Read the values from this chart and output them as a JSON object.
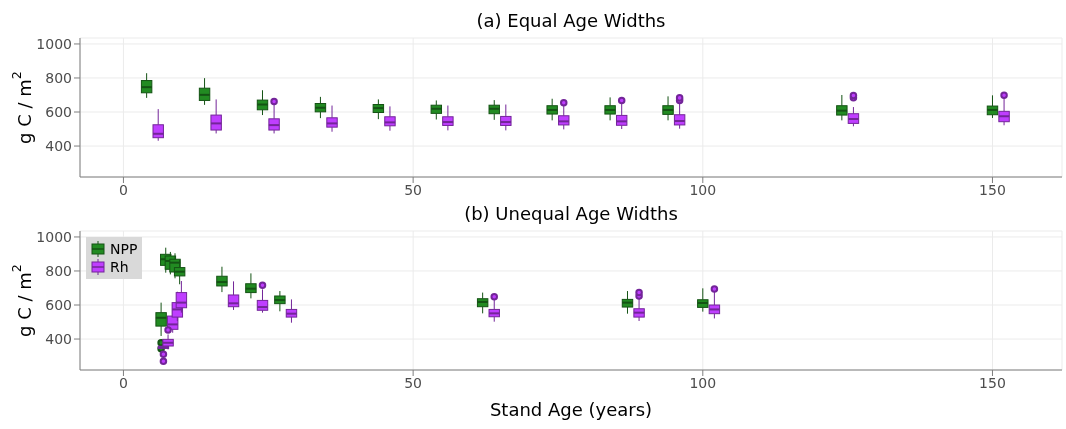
{
  "chart_data": [
    {
      "type": "box",
      "title": "(a) Equal Age Widths",
      "ylabel": "g C / m$^{2}$",
      "xlim": [
        -7.5,
        162
      ],
      "xticks": [
        0,
        50,
        100,
        150
      ],
      "ylim": [
        218,
        1035
      ],
      "yticks": [
        400,
        600,
        800,
        1000
      ],
      "grid": true,
      "series": [
        {
          "color": "#228b22",
          "x": [
            4,
            14,
            24,
            34,
            44,
            54,
            64,
            74,
            84,
            94,
            124,
            150
          ],
          "boxes": [
            {
              "low": 683,
              "q1": 713,
              "median": 746,
              "q3": 785,
              "high": 828
            },
            {
              "low": 642,
              "q1": 668,
              "median": 701,
              "q3": 740,
              "high": 799
            },
            {
              "low": 582,
              "q1": 613,
              "median": 644,
              "q3": 670,
              "high": 728
            },
            {
              "low": 564,
              "q1": 601,
              "median": 625,
              "q3": 650,
              "high": 689
            },
            {
              "low": 558,
              "q1": 597,
              "median": 623,
              "q3": 644,
              "high": 674
            },
            {
              "low": 556,
              "q1": 592,
              "median": 619,
              "q3": 640,
              "high": 668
            },
            {
              "low": 554,
              "q1": 590,
              "median": 619,
              "q3": 640,
              "high": 670
            },
            {
              "low": 551,
              "q1": 588,
              "median": 612,
              "q3": 637,
              "high": 678
            },
            {
              "low": 551,
              "q1": 588,
              "median": 612,
              "q3": 637,
              "high": 686
            },
            {
              "low": 551,
              "q1": 586,
              "median": 612,
              "q3": 637,
              "high": 692
            },
            {
              "low": 551,
              "q1": 582,
              "median": 608,
              "q3": 637,
              "high": 700
            },
            {
              "low": 565,
              "q1": 584,
              "median": 612,
              "q3": 635,
              "high": 698
            }
          ]
        },
        {
          "color": "#bf3eff",
          "x": [
            6,
            16,
            26,
            36,
            46,
            56,
            66,
            76,
            86,
            96,
            126,
            152
          ],
          "boxes": [
            {
              "low": 431,
              "q1": 449,
              "median": 472,
              "q3": 525,
              "high": 617
            },
            {
              "low": 474,
              "q1": 494,
              "median": 533,
              "q3": 582,
              "high": 674
            },
            {
              "low": 474,
              "q1": 494,
              "median": 523,
              "q3": 560,
              "high": 644,
              "outliers": [
                662
              ]
            },
            {
              "low": 484,
              "q1": 511,
              "median": 533,
              "q3": 566,
              "high": 638
            },
            {
              "low": 490,
              "q1": 519,
              "median": 539,
              "q3": 572,
              "high": 633
            },
            {
              "low": 492,
              "q1": 521,
              "median": 541,
              "q3": 572,
              "high": 638
            },
            {
              "low": 492,
              "q1": 521,
              "median": 541,
              "q3": 574,
              "high": 644
            },
            {
              "low": 498,
              "q1": 524,
              "median": 545,
              "q3": 578,
              "high": 639,
              "outliers": [
                655
              ]
            },
            {
              "low": 500,
              "q1": 522,
              "median": 545,
              "q3": 580,
              "high": 653,
              "outliers": [
                667
              ]
            },
            {
              "low": 502,
              "q1": 524,
              "median": 547,
              "q3": 584,
              "high": 653,
              "outliers": [
                668,
                683
              ]
            },
            {
              "low": 516,
              "q1": 533,
              "median": 559,
              "q3": 590,
              "high": 629,
              "outliers": [
                684,
                697
              ]
            },
            {
              "low": 522,
              "q1": 543,
              "median": 575,
              "q3": 604,
              "high": 684,
              "outliers": [
                698
              ]
            }
          ]
        }
      ]
    },
    {
      "type": "box",
      "title": "(b) Unequal Age Widths",
      "xlabel": "Stand Age (years)",
      "ylabel": "g C / m$^{2}$",
      "xlim": [
        -7.5,
        162
      ],
      "xticks": [
        0,
        50,
        100,
        150
      ],
      "ylim": [
        218,
        1035
      ],
      "yticks": [
        400,
        600,
        800,
        1000
      ],
      "grid": true,
      "legend": "top left",
      "series": [
        {
          "name": "NPP",
          "color": "#228b22",
          "x": [
            6.5,
            7.3,
            8.1,
            8.9,
            9.7,
            17,
            22,
            27,
            62,
            87,
            100
          ],
          "boxes": [
            {
              "low": 418,
              "q1": 476,
              "median": 525,
              "q3": 555,
              "high": 614,
              "outliers": [
                378,
                343
              ]
            },
            {
              "low": 790,
              "q1": 833,
              "median": 869,
              "q3": 898,
              "high": 937
            },
            {
              "low": 780,
              "q1": 810,
              "median": 859,
              "q3": 888,
              "high": 912
            },
            {
              "low": 757,
              "q1": 794,
              "median": 849,
              "q3": 869,
              "high": 904
            },
            {
              "low": 722,
              "q1": 771,
              "median": 796,
              "q3": 820,
              "high": 865
            },
            {
              "low": 676,
              "q1": 712,
              "median": 735,
              "q3": 769,
              "high": 825
            },
            {
              "low": 639,
              "q1": 673,
              "median": 696,
              "q3": 725,
              "high": 786
            },
            {
              "low": 563,
              "q1": 608,
              "median": 629,
              "q3": 653,
              "high": 682
            },
            {
              "low": 551,
              "q1": 590,
              "median": 618,
              "q3": 637,
              "high": 673
            },
            {
              "low": 549,
              "q1": 588,
              "median": 614,
              "q3": 633,
              "high": 682
            },
            {
              "low": 561,
              "q1": 586,
              "median": 612,
              "q3": 631,
              "high": 698
            }
          ]
        },
        {
          "name": "Rh",
          "color": "#bf3eff",
          "x": [
            6.9,
            7.7,
            8.5,
            9.3,
            10,
            19,
            24,
            29,
            64,
            89,
            102
          ],
          "boxes": [
            {
              "low": 340,
              "q1": 345,
              "median": 350,
              "q3": 358,
              "high": 365,
              "outliers": [
                310,
                270
              ]
            },
            {
              "low": 339,
              "q1": 359,
              "median": 378,
              "q3": 398,
              "high": 427,
              "outliers": [
                453
              ]
            },
            {
              "low": 437,
              "q1": 457,
              "median": 486,
              "q3": 535,
              "high": 604
            },
            {
              "low": 506,
              "q1": 529,
              "median": 574,
              "q3": 614,
              "high": 678
            },
            {
              "low": 555,
              "q1": 584,
              "median": 614,
              "q3": 673,
              "high": 741
            },
            {
              "low": 571,
              "q1": 590,
              "median": 610,
              "q3": 659,
              "high": 739
            },
            {
              "low": 555,
              "q1": 569,
              "median": 588,
              "q3": 627,
              "high": 692,
              "outliers": [
                716
              ]
            },
            {
              "low": 496,
              "q1": 529,
              "median": 549,
              "q3": 574,
              "high": 633
            },
            {
              "low": 502,
              "q1": 531,
              "median": 551,
              "q3": 574,
              "high": 633,
              "outliers": [
                649
              ]
            },
            {
              "low": 506,
              "q1": 529,
              "median": 555,
              "q3": 578,
              "high": 639,
              "outliers": [
                653,
                674
              ]
            },
            {
              "low": 521,
              "q1": 549,
              "median": 574,
              "q3": 600,
              "high": 682,
              "outliers": [
                694
              ]
            }
          ]
        }
      ]
    }
  ]
}
